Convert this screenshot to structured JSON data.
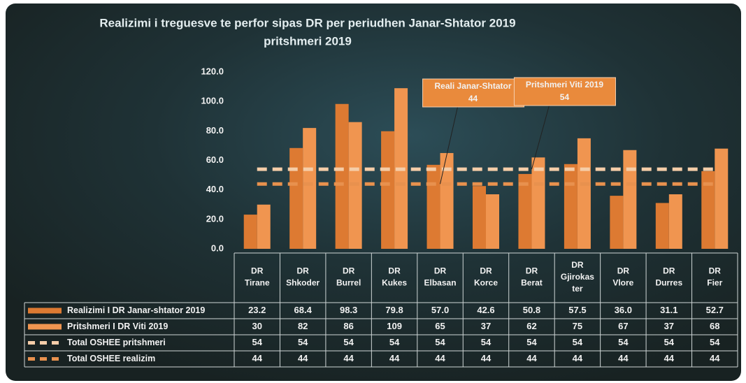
{
  "chart_data": {
    "type": "bar",
    "title": "Realizimi i treguesve te perfor sipas DR per periudhen Janar-Shtator 2019",
    "subtitle": "pritshmeri 2019",
    "categories": [
      "DR Tirane",
      "DR Shkoder",
      "DR Burrel",
      "DR Kukes",
      "DR Elbasan",
      "DR Korce",
      "DR Berat",
      "DR Gjirokaster",
      "DR Vlore",
      "DR Durres",
      "DR Fier"
    ],
    "series": [
      {
        "name": "Realizimi I DR Janar-shtator 2019",
        "type": "bar",
        "color": "#dd7a32",
        "values": [
          23.2,
          68.4,
          98.3,
          79.8,
          57.0,
          42.6,
          50.8,
          57.5,
          36.0,
          31.1,
          52.7
        ],
        "value_labels": [
          "23.2",
          "68.4",
          "98.3",
          "79.8",
          "57.0",
          "42.6",
          "50.8",
          "57.5",
          "36.0",
          "31.1",
          "52.7"
        ]
      },
      {
        "name": "Pritshmeri I DR  Viti 2019",
        "type": "bar",
        "color": "#f09550",
        "values": [
          30,
          82,
          86,
          109,
          65,
          37,
          62,
          75,
          67,
          37,
          68
        ]
      },
      {
        "name": "Total OSHEE pritshmeri",
        "type": "line",
        "dashed": true,
        "color": "#f5cda8",
        "values": [
          54,
          54,
          54,
          54,
          54,
          54,
          54,
          54,
          54,
          54,
          54
        ]
      },
      {
        "name": "Total OSHEE realizim",
        "type": "line",
        "dashed": true,
        "color": "#e8914e",
        "values": [
          44,
          44,
          44,
          44,
          44,
          44,
          44,
          44,
          44,
          44,
          44
        ]
      }
    ],
    "annotations": [
      {
        "lines": [
          "Reali  Janar-Shtator",
          "44"
        ],
        "category": 4,
        "series": 3
      },
      {
        "lines": [
          "Pritshmeri Viti 2019",
          "54"
        ],
        "category": 6,
        "series": 2
      }
    ],
    "ylim": [
      0,
      120
    ],
    "yticks": [
      {
        "value": 0,
        "label": "0.0"
      },
      {
        "value": 20,
        "label": "20.0"
      },
      {
        "value": 40,
        "label": "40.0"
      },
      {
        "value": 60,
        "label": "60.0"
      },
      {
        "value": 80,
        "label": "80.0"
      },
      {
        "value": 100,
        "label": "100.0"
      },
      {
        "value": 120,
        "label": "120.0"
      }
    ],
    "grid": false
  }
}
